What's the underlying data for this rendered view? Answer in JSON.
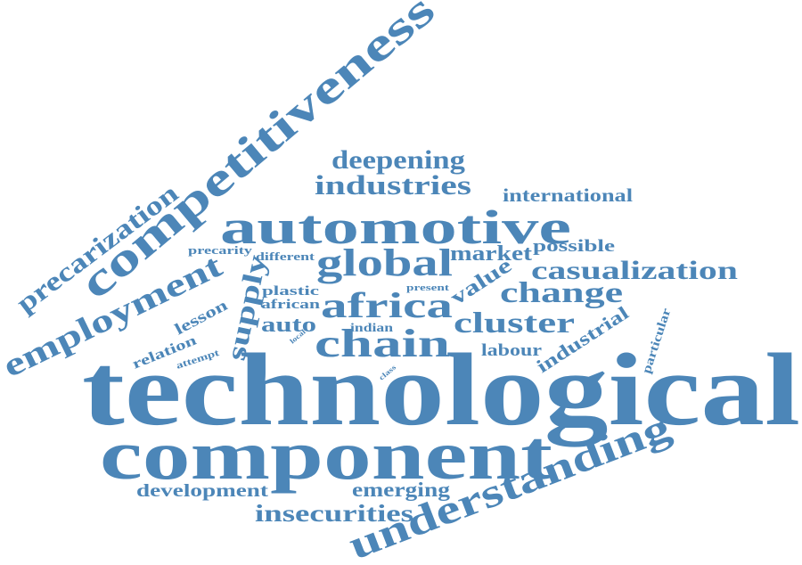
{
  "cloud": {
    "color": "#4c86b8",
    "words": [
      "technological",
      "component",
      "automotive",
      "competitiveness",
      "understanding",
      "employment",
      "precarization",
      "africa",
      "chain",
      "global",
      "casualization",
      "cluster",
      "change",
      "industries",
      "deepening",
      "insecurities",
      "supply",
      "emerging",
      "development",
      "international",
      "market",
      "auto",
      "value",
      "industrial",
      "labour",
      "possible",
      "relation",
      "lesson",
      "particular",
      "plastic",
      "african",
      "indian",
      "precarity",
      "different",
      "attempt",
      "present",
      "local",
      "class"
    ]
  }
}
